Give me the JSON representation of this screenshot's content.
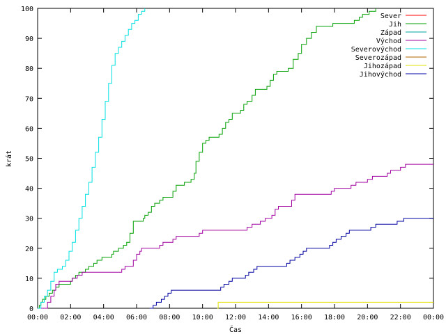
{
  "chart_data": {
    "type": "line",
    "title": "",
    "xlabel": "Čas",
    "ylabel": "krát",
    "xlim": [
      0,
      24
    ],
    "ylim": [
      0,
      100
    ],
    "x_tick_labels": [
      "00:00",
      "02:00",
      "04:00",
      "06:00",
      "08:00",
      "10:00",
      "12:00",
      "14:00",
      "16:00",
      "18:00",
      "20:00",
      "22:00",
      "00:00"
    ],
    "y_tick_labels": [
      "0",
      "10",
      "20",
      "30",
      "40",
      "50",
      "60",
      "70",
      "80",
      "90",
      "100"
    ],
    "grid": false,
    "legend_position": "top-right",
    "series": [
      {
        "name": "Sever",
        "color": "#ff0000",
        "points": []
      },
      {
        "name": "Jih",
        "color": "#00a000",
        "points": [
          [
            0.0,
            0
          ],
          [
            0.1,
            1
          ],
          [
            0.2,
            2
          ],
          [
            0.3,
            3
          ],
          [
            0.5,
            4
          ],
          [
            0.7,
            5
          ],
          [
            0.9,
            6
          ],
          [
            1.1,
            7
          ],
          [
            1.3,
            8
          ],
          [
            2.0,
            9
          ],
          [
            2.1,
            10
          ],
          [
            2.3,
            11
          ],
          [
            2.5,
            12
          ],
          [
            2.9,
            13
          ],
          [
            3.1,
            14
          ],
          [
            3.4,
            15
          ],
          [
            3.6,
            16
          ],
          [
            3.9,
            17
          ],
          [
            4.5,
            18
          ],
          [
            4.6,
            19
          ],
          [
            4.9,
            20
          ],
          [
            5.2,
            21
          ],
          [
            5.4,
            22
          ],
          [
            5.6,
            25
          ],
          [
            5.8,
            29
          ],
          [
            6.4,
            30
          ],
          [
            6.5,
            31
          ],
          [
            6.7,
            32
          ],
          [
            6.9,
            34
          ],
          [
            7.1,
            35
          ],
          [
            7.4,
            36
          ],
          [
            7.6,
            37
          ],
          [
            8.2,
            39
          ],
          [
            8.4,
            41
          ],
          [
            8.9,
            42
          ],
          [
            9.3,
            43
          ],
          [
            9.5,
            45
          ],
          [
            9.6,
            49
          ],
          [
            9.8,
            52
          ],
          [
            10.0,
            55
          ],
          [
            10.2,
            56
          ],
          [
            10.4,
            57
          ],
          [
            11.0,
            58
          ],
          [
            11.2,
            60
          ],
          [
            11.4,
            62
          ],
          [
            11.6,
            63
          ],
          [
            11.8,
            65
          ],
          [
            12.3,
            66
          ],
          [
            12.5,
            68
          ],
          [
            12.7,
            69
          ],
          [
            13.0,
            71
          ],
          [
            13.2,
            73
          ],
          [
            13.9,
            74
          ],
          [
            14.1,
            76
          ],
          [
            14.3,
            78
          ],
          [
            14.5,
            79
          ],
          [
            15.2,
            80
          ],
          [
            15.5,
            83
          ],
          [
            15.8,
            85
          ],
          [
            16.0,
            88
          ],
          [
            16.3,
            90
          ],
          [
            16.6,
            92
          ],
          [
            16.9,
            94
          ],
          [
            17.9,
            95
          ],
          [
            19.2,
            96
          ],
          [
            19.5,
            97
          ],
          [
            19.7,
            98
          ],
          [
            20.1,
            99
          ],
          [
            20.5,
            100
          ]
        ]
      },
      {
        "name": "Západ",
        "color": "#00a0a0",
        "points": []
      },
      {
        "name": "Východ",
        "color": "#a000a0",
        "points": [
          [
            0.0,
            0
          ],
          [
            0.6,
            2
          ],
          [
            0.8,
            4
          ],
          [
            1.0,
            6
          ],
          [
            1.1,
            8
          ],
          [
            1.3,
            9
          ],
          [
            2.1,
            10
          ],
          [
            2.4,
            11
          ],
          [
            2.7,
            12
          ],
          [
            5.1,
            13
          ],
          [
            5.3,
            14
          ],
          [
            5.8,
            16
          ],
          [
            6.0,
            18
          ],
          [
            6.2,
            19
          ],
          [
            6.3,
            20
          ],
          [
            7.4,
            21
          ],
          [
            7.6,
            22
          ],
          [
            8.2,
            23
          ],
          [
            8.4,
            24
          ],
          [
            9.8,
            25
          ],
          [
            10.0,
            26
          ],
          [
            12.7,
            27
          ],
          [
            13.0,
            28
          ],
          [
            13.5,
            29
          ],
          [
            13.8,
            30
          ],
          [
            14.2,
            31
          ],
          [
            14.4,
            33
          ],
          [
            14.6,
            34
          ],
          [
            15.4,
            36
          ],
          [
            15.6,
            38
          ],
          [
            17.8,
            39
          ],
          [
            18.0,
            40
          ],
          [
            19.0,
            41
          ],
          [
            19.3,
            42
          ],
          [
            20.0,
            43
          ],
          [
            20.3,
            44
          ],
          [
            21.2,
            45
          ],
          [
            21.4,
            46
          ],
          [
            22.0,
            47
          ],
          [
            22.3,
            48
          ],
          [
            24.0,
            48
          ]
        ]
      },
      {
        "name": "Severovýchod",
        "color": "#00e0e0",
        "points": [
          [
            0.0,
            0
          ],
          [
            0.2,
            2
          ],
          [
            0.4,
            4
          ],
          [
            0.6,
            6
          ],
          [
            0.8,
            9
          ],
          [
            1.0,
            12
          ],
          [
            1.2,
            13
          ],
          [
            1.5,
            14
          ],
          [
            1.7,
            16
          ],
          [
            1.9,
            19
          ],
          [
            2.1,
            22
          ],
          [
            2.3,
            26
          ],
          [
            2.5,
            30
          ],
          [
            2.7,
            34
          ],
          [
            2.9,
            38
          ],
          [
            3.1,
            42
          ],
          [
            3.3,
            47
          ],
          [
            3.5,
            52
          ],
          [
            3.7,
            57
          ],
          [
            3.9,
            63
          ],
          [
            4.1,
            69
          ],
          [
            4.3,
            75
          ],
          [
            4.5,
            81
          ],
          [
            4.7,
            85
          ],
          [
            4.9,
            87
          ],
          [
            5.1,
            89
          ],
          [
            5.3,
            91
          ],
          [
            5.5,
            93
          ],
          [
            5.7,
            95
          ],
          [
            5.9,
            96
          ],
          [
            6.1,
            98
          ],
          [
            6.3,
            99
          ],
          [
            6.5,
            100
          ]
        ]
      },
      {
        "name": "Severozápad",
        "color": "#b06000",
        "points": []
      },
      {
        "name": "Jihozápad",
        "color": "#e0e000",
        "points": [
          [
            10.9,
            0
          ],
          [
            10.95,
            2
          ],
          [
            24.0,
            2
          ]
        ]
      },
      {
        "name": "Jihovýchod",
        "color": "#0000a0",
        "points": [
          [
            6.8,
            0
          ],
          [
            7.0,
            1
          ],
          [
            7.2,
            2
          ],
          [
            7.5,
            3
          ],
          [
            7.7,
            4
          ],
          [
            7.9,
            5
          ],
          [
            8.1,
            6
          ],
          [
            10.9,
            6
          ],
          [
            11.1,
            7
          ],
          [
            11.3,
            8
          ],
          [
            11.6,
            9
          ],
          [
            11.8,
            10
          ],
          [
            12.6,
            11
          ],
          [
            12.8,
            12
          ],
          [
            13.1,
            13
          ],
          [
            13.3,
            14
          ],
          [
            15.1,
            15
          ],
          [
            15.3,
            16
          ],
          [
            15.6,
            17
          ],
          [
            15.9,
            18
          ],
          [
            16.1,
            19
          ],
          [
            16.3,
            20
          ],
          [
            17.7,
            21
          ],
          [
            17.9,
            22
          ],
          [
            18.1,
            23
          ],
          [
            18.4,
            24
          ],
          [
            18.7,
            25
          ],
          [
            18.9,
            26
          ],
          [
            20.2,
            27
          ],
          [
            20.5,
            28
          ],
          [
            21.8,
            29
          ],
          [
            22.2,
            30
          ],
          [
            24.0,
            30
          ]
        ]
      }
    ]
  }
}
